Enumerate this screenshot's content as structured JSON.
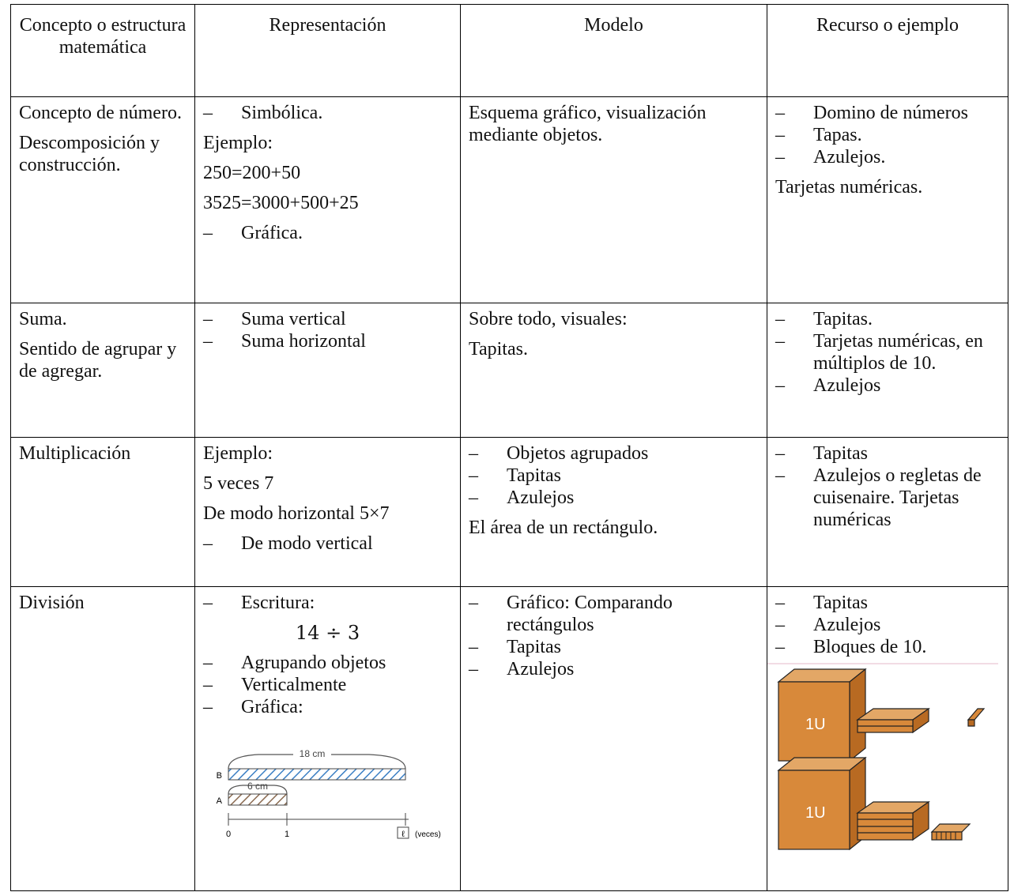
{
  "table": {
    "header": [
      "Concepto o estructura matemática",
      "Representación",
      "Modelo",
      "Recurso o ejemplo"
    ],
    "rows": [
      [
        [
          {
            "text": "Concepto de número."
          },
          {
            "text": "Descomposición y construcción."
          }
        ],
        [
          {
            "bullet": "–",
            "text": "Simbólica."
          },
          {
            "text": "Ejemplo:"
          },
          {
            "text": "250=200+50"
          },
          {
            "text": "3525=3000+500+25"
          },
          {
            "bullet": "–",
            "text": "Gráfica."
          }
        ],
        [
          {
            "text": "Esquema gráfico, visualización mediante objetos."
          }
        ],
        [
          {
            "bullet": "–",
            "text": "Domino de números"
          },
          {
            "bullet": "–",
            "text": "Tapas."
          },
          {
            "bullet": "–",
            "text": "Azulejos."
          },
          {
            "text": "Tarjetas numéricas."
          }
        ]
      ],
      [
        [
          {
            "text": "Suma."
          },
          {
            "text": "Sentido de agrupar y de agregar."
          }
        ],
        [
          {
            "bullet": "–",
            "text": "Suma vertical"
          },
          {
            "bullet": "–",
            "text": "Suma horizontal"
          }
        ],
        [
          {
            "text": "Sobre todo, visuales:"
          },
          {
            "text": "Tapitas."
          }
        ],
        [
          {
            "bullet": "–",
            "text": "Tapitas."
          },
          {
            "bullet": "–",
            "text": "Tarjetas numéricas, en múltiplos de 10."
          },
          {
            "bullet": "–",
            "text": "Azulejos"
          }
        ]
      ],
      [
        [
          {
            "text": "Multiplicación"
          }
        ],
        [
          {
            "text": "Ejemplo:"
          },
          {
            "text": "5 veces 7"
          },
          {
            "text": "De modo horizontal 5×7"
          },
          {
            "bullet": "–",
            "text": "De modo vertical"
          }
        ],
        [
          {
            "bullet": "–",
            "text": "Objetos agrupados"
          },
          {
            "bullet": "–",
            "text": "Tapitas"
          },
          {
            "bullet": "–",
            "text": "Azulejos"
          },
          {
            "text": "El área de un rectángulo."
          }
        ],
        [
          {
            "bullet": "–",
            "text": "Tapitas"
          },
          {
            "bullet": "–",
            "text": "Azulejos o regletas de cuisenaire. Tarjetas numéricas"
          }
        ]
      ],
      [
        [
          {
            "text": "División"
          }
        ],
        [
          {
            "bullet": "–",
            "text": "Escritura:"
          },
          {
            "text": "14 ÷ 3",
            "center": true
          },
          {
            "bullet": "–",
            "text": "Agrupando objetos"
          },
          {
            "bullet": "–",
            "text": "Verticalmente"
          },
          {
            "bullet": "–",
            "text": "Gráfica:"
          }
        ],
        [
          {
            "bullet": "–",
            "text": "Gráfico: Comparando rectángulos"
          },
          {
            "bullet": "–",
            "text": "Tapitas"
          },
          {
            "bullet": "–",
            "text": "Azulejos"
          }
        ],
        [
          {
            "bullet": "–",
            "text": "Tapitas"
          },
          {
            "bullet": "–",
            "text": "Azulejos"
          },
          {
            "bullet": "–",
            "text": "Bloques de 10."
          }
        ]
      ]
    ]
  },
  "figure_division": {
    "length_b": "18 cm",
    "length_a": "6 cm",
    "label_b": "B",
    "label_a": "A",
    "tick_0": "0",
    "tick_1": "1",
    "tick_end": "ℓ",
    "axis_unit": "(veces)"
  },
  "figure_blocks": {
    "label_top": "1U",
    "label_bottom": "1U"
  }
}
